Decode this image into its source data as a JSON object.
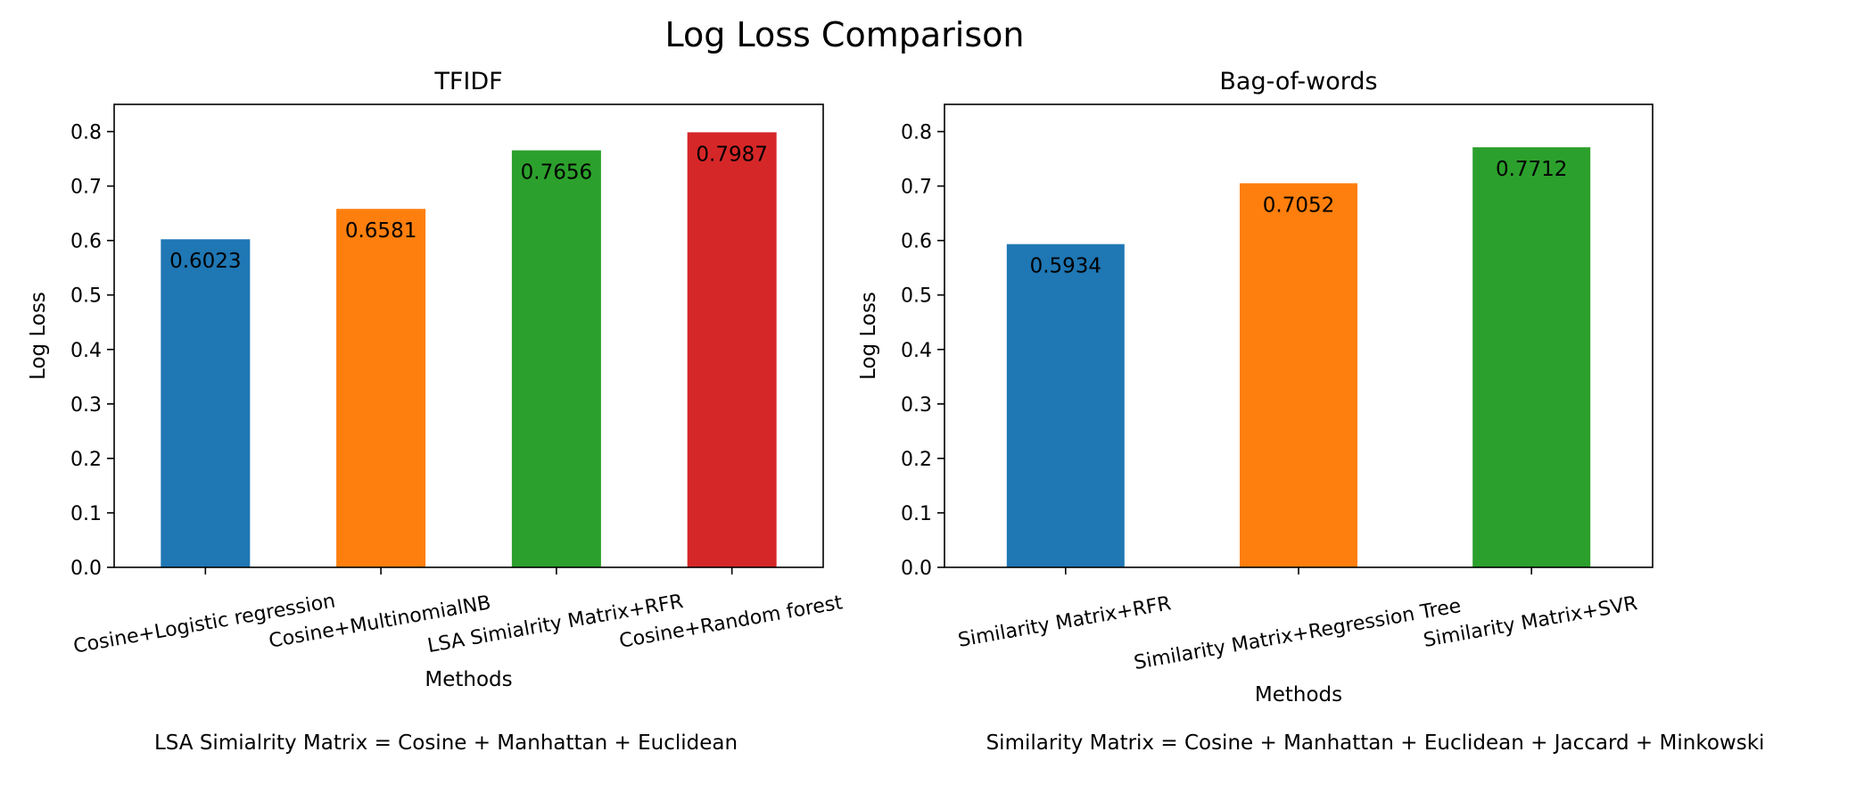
{
  "title": "Log Loss Comparison",
  "chart_data": [
    {
      "type": "bar",
      "title": "TFIDF",
      "xlabel": "Methods",
      "ylabel": "Log Loss",
      "ylim": [
        0,
        0.85
      ],
      "yticks": [
        "0.0",
        "0.1",
        "0.2",
        "0.3",
        "0.4",
        "0.5",
        "0.6",
        "0.7",
        "0.8"
      ],
      "categories": [
        "Cosine+Logistic regression",
        "Cosine+MultinomialNB",
        "LSA Simialrity Matrix+RFR",
        "Cosine+Random forest"
      ],
      "values": [
        0.6023,
        0.6581,
        0.7656,
        0.7987
      ],
      "value_labels": [
        "0.6023",
        "0.6581",
        "0.7656",
        "0.7987"
      ],
      "colors": [
        "#1f77b4",
        "#ff7f0e",
        "#2ca02c",
        "#d62728"
      ],
      "footnote": "LSA Simialrity Matrix = Cosine + Manhattan + Euclidean"
    },
    {
      "type": "bar",
      "title": "Bag-of-words",
      "xlabel": "Methods",
      "ylabel": "Log Loss",
      "ylim": [
        0,
        0.85
      ],
      "yticks": [
        "0.0",
        "0.1",
        "0.2",
        "0.3",
        "0.4",
        "0.5",
        "0.6",
        "0.7",
        "0.8"
      ],
      "categories": [
        "Similarity Matrix+RFR",
        "Similarity Matrix+Regression Tree",
        "Similarity Matrix+SVR"
      ],
      "values": [
        0.5934,
        0.7052,
        0.7712
      ],
      "value_labels": [
        "0.5934",
        "0.7052",
        "0.7712"
      ],
      "colors": [
        "#1f77b4",
        "#ff7f0e",
        "#2ca02c"
      ],
      "footnote": "Similarity Matrix = Cosine + Manhattan + Euclidean + Jaccard + Minkowski"
    }
  ]
}
